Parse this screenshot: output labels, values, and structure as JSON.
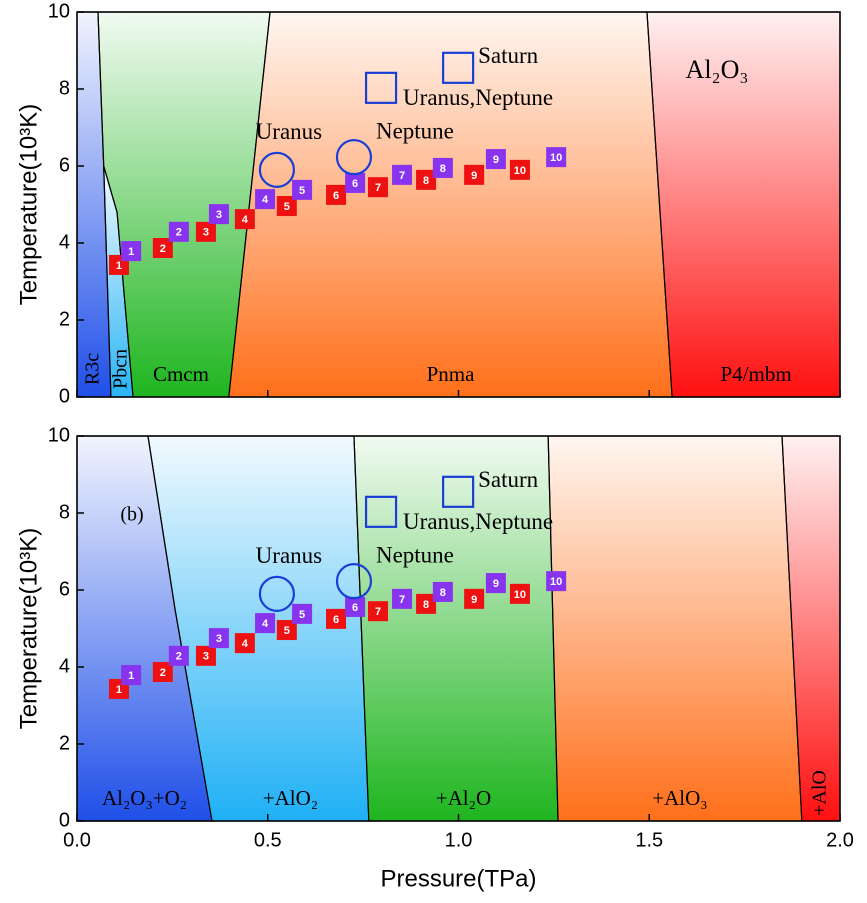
{
  "chart_data": [
    {
      "type": "phase-diagram",
      "xlim": [
        0,
        2
      ],
      "ylim": [
        0,
        10
      ],
      "xticks": [
        {
          "value": 0,
          "label": "0.0"
        },
        {
          "value": 0.5,
          "label": "0.5"
        },
        {
          "value": 1,
          "label": "1.0"
        },
        {
          "value": 1.5,
          "label": "1.5"
        },
        {
          "value": 2,
          "label": "2.0"
        }
      ],
      "yticks": [
        0,
        2,
        4,
        6,
        8,
        10
      ],
      "y_label": "Temperature(10³K)",
      "regions": [
        {
          "name": "R3c",
          "color": "#1f4fe8",
          "rotated": true,
          "x": [
            0,
            0,
            0.055,
            0.07,
            0.089
          ],
          "y": [
            0,
            10,
            10,
            6.0,
            0
          ]
        },
        {
          "name": "Pbcn",
          "color": "#2ab4f5",
          "rotated": true,
          "x": [
            0.089,
            0.07,
            0.105,
            0.147
          ],
          "y": [
            0,
            6.0,
            4.8,
            0
          ]
        },
        {
          "name": "Cmcm",
          "color": "#1fb51f",
          "x": [
            0.147,
            0.105,
            0.07,
            0.055,
            0.506,
            0.398
          ],
          "y": [
            0,
            4.8,
            6.0,
            10,
            10,
            0
          ]
        },
        {
          "name": "Pnma",
          "color": "#ff6f1a",
          "x": [
            0.398,
            0.506,
            1.494,
            1.56
          ],
          "y": [
            0,
            10,
            10,
            0
          ]
        },
        {
          "name": "P4/mbm",
          "color": "#ff1010",
          "x": [
            1.56,
            1.494,
            2,
            2
          ],
          "y": [
            0,
            10,
            10,
            0
          ]
        }
      ],
      "annotation": "Al₂O₃",
      "series": [
        {
          "color": "#ee1111",
          "point_labels": [
            "1",
            "2",
            "3",
            "4",
            "5",
            "6",
            "7",
            "8",
            "9",
            "10"
          ],
          "x": [
            0.11,
            0.225,
            0.338,
            0.44,
            0.55,
            0.679,
            0.789,
            0.915,
            1.041,
            1.161
          ],
          "values": [
            3.43,
            3.87,
            4.29,
            4.62,
            4.96,
            5.25,
            5.45,
            5.64,
            5.77,
            5.9
          ]
        },
        {
          "color": "#8833ee",
          "point_labels": [
            "1",
            "2",
            "3",
            "4",
            "5",
            "6",
            "7",
            "8",
            "9",
            "10"
          ],
          "x": [
            0.142,
            0.267,
            0.372,
            0.493,
            0.59,
            0.729,
            0.852,
            0.959,
            1.098,
            1.256
          ],
          "values": [
            3.79,
            4.29,
            4.75,
            5.14,
            5.38,
            5.56,
            5.77,
            5.95,
            6.18,
            6.23
          ]
        }
      ],
      "planets": [
        {
          "label": "Uranus",
          "shape": "circle",
          "label_position": "top",
          "x": 0.524,
          "y": 5.9
        },
        {
          "label": "Neptune",
          "shape": "circle",
          "label_position": "top-right",
          "x": 0.726,
          "y": 6.23
        },
        {
          "label": "Saturn",
          "shape": "square",
          "label_position": "right",
          "x": 0.999,
          "y": 8.55
        },
        {
          "label": "Uranus,Neptune",
          "shape": "square",
          "label_position": "bottom-right",
          "x": 0.797,
          "y": 8.03
        }
      ]
    },
    {
      "type": "phase-diagram",
      "xlim": [
        0,
        2
      ],
      "ylim": [
        0,
        10
      ],
      "xticks": [
        {
          "value": 0,
          "label": "0.0"
        },
        {
          "value": 0.5,
          "label": "0.5"
        },
        {
          "value": 1,
          "label": "1.0"
        },
        {
          "value": 1.5,
          "label": "1.5"
        },
        {
          "value": 2,
          "label": "2.0"
        }
      ],
      "yticks": [
        0,
        2,
        4,
        6,
        8,
        10
      ],
      "y_label": "Temperature(10³K)",
      "x_label": "Pressure(TPa)",
      "regions": [
        {
          "name": "Al₂O₃+O₂",
          "color": "#1f4fe8",
          "x": [
            0,
            0,
            0.186,
            0.257,
            0.354
          ],
          "y": [
            0,
            10,
            10,
            5.5,
            0
          ]
        },
        {
          "name": "+AlO₂",
          "color": "#1fb0f5",
          "x": [
            0.354,
            0.257,
            0.186,
            0.726,
            0.765
          ],
          "y": [
            0,
            5.5,
            10,
            10,
            0
          ]
        },
        {
          "name": "+Al₂O",
          "color": "#1fb51f",
          "x": [
            0.765,
            0.726,
            1.235,
            1.261
          ],
          "y": [
            0,
            10,
            10,
            0
          ]
        },
        {
          "name": "+AlO₃",
          "color": "#ff6f1a",
          "x": [
            1.261,
            1.235,
            1.848,
            1.9
          ],
          "y": [
            0,
            10,
            10,
            0
          ]
        },
        {
          "name": "+AlO",
          "color": "#ff1010",
          "rotated": true,
          "x": [
            1.9,
            1.848,
            2,
            2
          ],
          "y": [
            0,
            10,
            10,
            0
          ]
        }
      ],
      "annotation": "(b)",
      "series": [
        {
          "color": "#ee1111",
          "point_labels": [
            "1",
            "2",
            "3",
            "4",
            "5",
            "6",
            "7",
            "8",
            "9",
            "10"
          ],
          "x": [
            0.11,
            0.225,
            0.338,
            0.44,
            0.55,
            0.679,
            0.789,
            0.915,
            1.041,
            1.161
          ],
          "values": [
            3.43,
            3.87,
            4.29,
            4.62,
            4.96,
            5.25,
            5.45,
            5.64,
            5.77,
            5.9
          ]
        },
        {
          "color": "#8833ee",
          "point_labels": [
            "1",
            "2",
            "3",
            "4",
            "5",
            "6",
            "7",
            "8",
            "9",
            "10"
          ],
          "x": [
            0.142,
            0.267,
            0.372,
            0.493,
            0.59,
            0.729,
            0.852,
            0.959,
            1.098,
            1.256
          ],
          "values": [
            3.79,
            4.29,
            4.75,
            5.14,
            5.38,
            5.56,
            5.77,
            5.95,
            6.18,
            6.23
          ]
        }
      ],
      "planets": [
        {
          "label": "Uranus",
          "shape": "circle",
          "label_position": "top",
          "x": 0.524,
          "y": 5.9
        },
        {
          "label": "Neptune",
          "shape": "circle",
          "label_position": "top-right",
          "x": 0.726,
          "y": 6.23
        },
        {
          "label": "Saturn",
          "shape": "square",
          "label_position": "right",
          "x": 0.999,
          "y": 8.55
        },
        {
          "label": "Uranus,Neptune",
          "shape": "square",
          "label_position": "bottom-right",
          "x": 0.797,
          "y": 8.03
        }
      ]
    }
  ]
}
